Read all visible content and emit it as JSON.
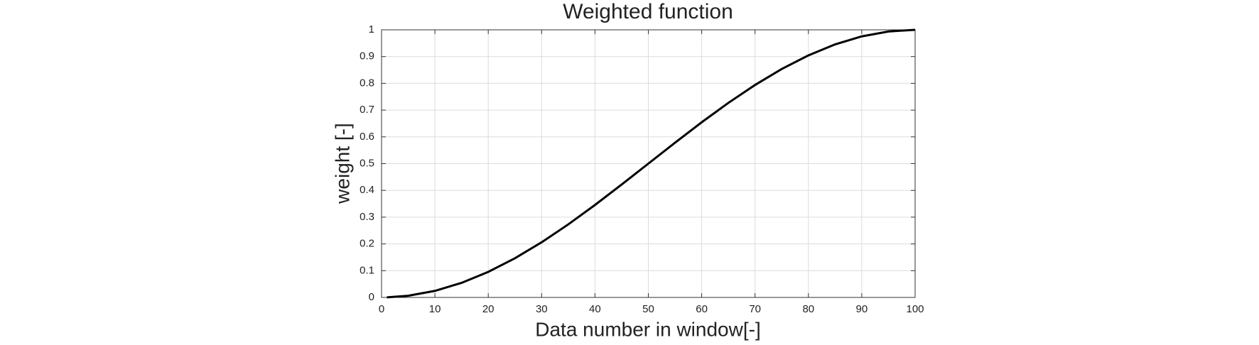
{
  "chart_data": {
    "type": "line",
    "title": "Weighted function",
    "x_label": "Data number in window[-]",
    "y_label": "weight [-]",
    "x": [
      1,
      5,
      10,
      15,
      20,
      25,
      30,
      35,
      40,
      45,
      50,
      55,
      60,
      65,
      70,
      75,
      80,
      85,
      90,
      95,
      100
    ],
    "series": [
      {
        "name": "weight",
        "color": "#000000",
        "values": [
          0.0002,
          0.0062,
          0.0245,
          0.0545,
          0.0955,
          0.1464,
          0.2061,
          0.273,
          0.3455,
          0.4218,
          0.5,
          0.5782,
          0.6545,
          0.727,
          0.7939,
          0.8536,
          0.9045,
          0.9455,
          0.9755,
          0.9938,
          1
        ]
      }
    ],
    "xlim": [
      0,
      100
    ],
    "xticks": [
      0,
      10,
      20,
      30,
      40,
      50,
      60,
      70,
      80,
      90,
      100
    ],
    "ylim": [
      0,
      1
    ],
    "yticks": [
      0,
      0.1,
      0.2,
      0.3,
      0.4,
      0.5,
      0.6,
      0.7,
      0.8,
      0.9,
      1
    ],
    "grid": true
  }
}
